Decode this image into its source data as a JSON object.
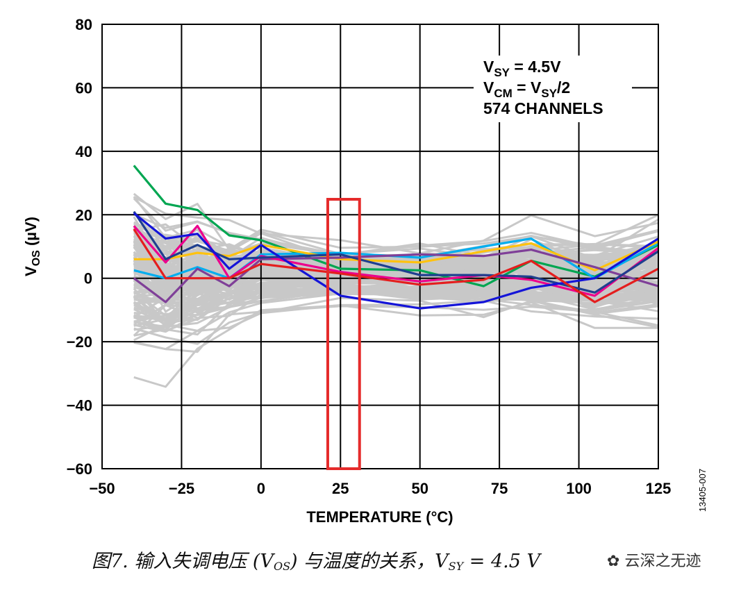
{
  "chart_data": {
    "type": "line",
    "xlabel": "TEMPERATURE (°C)",
    "ylabel_main": "V",
    "ylabel_sub": "OS",
    "ylabel_unit": " (µV)",
    "xlim": [
      -50,
      125
    ],
    "ylim": [
      -60,
      80
    ],
    "xticks": [
      -50,
      -25,
      0,
      25,
      50,
      75,
      100,
      125
    ],
    "xtick_labels": [
      "−50",
      "−25",
      "0",
      "25",
      "50",
      "75",
      "100",
      "125"
    ],
    "yticks": [
      -60,
      -40,
      -20,
      0,
      20,
      40,
      60,
      80
    ],
    "ytick_labels": [
      "−60",
      "−40",
      "−20",
      "0",
      "20",
      "40",
      "60",
      "80"
    ],
    "grid": true,
    "x": [
      -40,
      -30,
      -20,
      -10,
      0,
      25,
      50,
      70,
      85,
      105,
      125
    ],
    "series": [
      {
        "color": "#00a651",
        "values": [
          35.5,
          23.5,
          21.5,
          13.5,
          12,
          3,
          2.5,
          -2.5,
          5.5,
          0.5,
          10.5
        ]
      },
      {
        "color": "#00aeef",
        "values": [
          2.5,
          0,
          3.5,
          0,
          7.5,
          8,
          6.5,
          10,
          12.5,
          0,
          11
        ]
      },
      {
        "color": "#ffc20e",
        "values": [
          6,
          6,
          8,
          7,
          10.5,
          6,
          5,
          8.5,
          11,
          2.5,
          11.5
        ]
      },
      {
        "color": "#7f3f98",
        "values": [
          0,
          -7.5,
          3,
          -2.5,
          6,
          6.5,
          7.5,
          7,
          9,
          3.5,
          -2.5
        ]
      },
      {
        "color": "#ec008c",
        "values": [
          16.5,
          5,
          16.5,
          0,
          7,
          2,
          -1,
          1,
          -0.5,
          -5.5,
          9.5
        ]
      },
      {
        "color": "#1f3f8f",
        "values": [
          21,
          6,
          10.5,
          6,
          6.5,
          7.5,
          1,
          1,
          0.5,
          -4.5,
          8.5
        ]
      },
      {
        "color": "#1414d8",
        "values": [
          20.5,
          12.5,
          14,
          3,
          10.5,
          -5.5,
          -9.5,
          -7.5,
          -3,
          0,
          12.5
        ]
      },
      {
        "color": "#e41e1e",
        "values": [
          15.5,
          0,
          0,
          0,
          4.5,
          1.5,
          -2,
          -0.5,
          5.5,
          -7.5,
          3
        ]
      }
    ],
    "background_series_color": "#c8c8c8",
    "background_series_count": 574,
    "annotation": {
      "line1": {
        "main": "V",
        "sub": "SY",
        "rest": " = 4.5V"
      },
      "line2": {
        "main": "V",
        "sub": "CM",
        "mid": " = V",
        "sub2": "SY",
        "rest": "/2"
      },
      "line3": "574 CHANNELS"
    },
    "highlight_box": {
      "x_range": [
        21,
        31
      ],
      "color": "#e52b2b"
    },
    "figure_code": "13405-007"
  },
  "caption": {
    "prefix": "图7. 输入失调电压 (V",
    "sub1": "OS",
    "middle": ") 与温度的关系，V",
    "sub2": "SY",
    "suffix": " = 4.5 V"
  },
  "watermark": "云深之无迹"
}
